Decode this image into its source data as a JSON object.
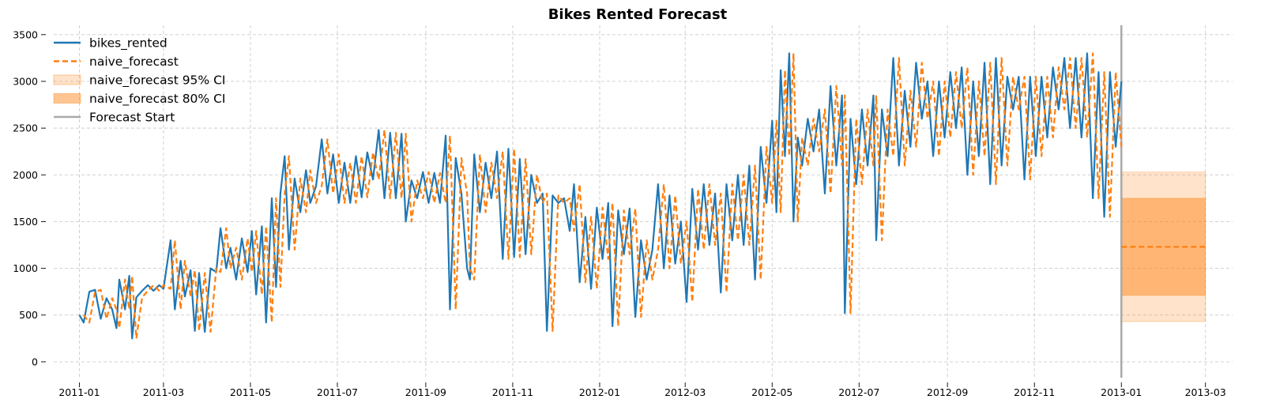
{
  "chart_data": {
    "type": "line",
    "title": "Bikes Rented Forecast",
    "xlabel": "",
    "ylabel": "",
    "x_range": [
      "2010-12-14",
      "2013-03-20"
    ],
    "ylim": [
      -170,
      3600
    ],
    "grid": true,
    "legend_position": "top-left",
    "x_ticks": [
      "2011-01",
      "2011-03",
      "2011-05",
      "2011-07",
      "2011-09",
      "2011-11",
      "2012-01",
      "2012-03",
      "2012-05",
      "2012-07",
      "2012-09",
      "2012-11",
      "2013-01",
      "2013-03"
    ],
    "y_ticks": [
      0,
      500,
      1000,
      1500,
      2000,
      2500,
      3000,
      3500
    ],
    "series": [
      {
        "name": "bikes_rented",
        "color": "#1f77b4",
        "style": "solid",
        "points": [
          [
            "2011-01-01",
            500
          ],
          [
            "2011-01-04",
            420
          ],
          [
            "2011-01-08",
            750
          ],
          [
            "2011-01-12",
            770
          ],
          [
            "2011-01-16",
            460
          ],
          [
            "2011-01-20",
            680
          ],
          [
            "2011-01-24",
            560
          ],
          [
            "2011-01-27",
            360
          ],
          [
            "2011-01-29",
            880
          ],
          [
            "2011-02-02",
            560
          ],
          [
            "2011-02-05",
            920
          ],
          [
            "2011-02-07",
            250
          ],
          [
            "2011-02-10",
            690
          ],
          [
            "2011-02-14",
            760
          ],
          [
            "2011-02-18",
            820
          ],
          [
            "2011-02-22",
            760
          ],
          [
            "2011-02-26",
            820
          ],
          [
            "2011-03-01",
            780
          ],
          [
            "2011-03-06",
            1300
          ],
          [
            "2011-03-09",
            560
          ],
          [
            "2011-03-13",
            1080
          ],
          [
            "2011-03-16",
            700
          ],
          [
            "2011-03-20",
            980
          ],
          [
            "2011-03-23",
            330
          ],
          [
            "2011-03-26",
            950
          ],
          [
            "2011-03-30",
            320
          ],
          [
            "2011-04-03",
            1000
          ],
          [
            "2011-04-07",
            960
          ],
          [
            "2011-04-10",
            1430
          ],
          [
            "2011-04-14",
            1000
          ],
          [
            "2011-04-17",
            1220
          ],
          [
            "2011-04-21",
            880
          ],
          [
            "2011-04-25",
            1320
          ],
          [
            "2011-04-29",
            960
          ],
          [
            "2011-05-02",
            1400
          ],
          [
            "2011-05-05",
            720
          ],
          [
            "2011-05-09",
            1450
          ],
          [
            "2011-05-12",
            420
          ],
          [
            "2011-05-16",
            1750
          ],
          [
            "2011-05-19",
            800
          ],
          [
            "2011-05-22",
            1800
          ],
          [
            "2011-05-25",
            2200
          ],
          [
            "2011-05-28",
            1200
          ],
          [
            "2011-06-01",
            1960
          ],
          [
            "2011-06-05",
            1600
          ],
          [
            "2011-06-09",
            2050
          ],
          [
            "2011-06-12",
            1700
          ],
          [
            "2011-06-16",
            1880
          ],
          [
            "2011-06-20",
            2380
          ],
          [
            "2011-06-24",
            1800
          ],
          [
            "2011-06-28",
            2220
          ],
          [
            "2011-07-02",
            1700
          ],
          [
            "2011-07-06",
            2130
          ],
          [
            "2011-07-10",
            1700
          ],
          [
            "2011-07-14",
            2200
          ],
          [
            "2011-07-18",
            1760
          ],
          [
            "2011-07-22",
            2240
          ],
          [
            "2011-07-26",
            1950
          ],
          [
            "2011-07-30",
            2480
          ],
          [
            "2011-08-03",
            1750
          ],
          [
            "2011-08-07",
            2450
          ],
          [
            "2011-08-11",
            1750
          ],
          [
            "2011-08-15",
            2440
          ],
          [
            "2011-08-18",
            1500
          ],
          [
            "2011-08-22",
            1940
          ],
          [
            "2011-08-26",
            1750
          ],
          [
            "2011-08-30",
            2030
          ],
          [
            "2011-09-03",
            1700
          ],
          [
            "2011-09-07",
            2020
          ],
          [
            "2011-09-11",
            1700
          ],
          [
            "2011-09-15",
            2420
          ],
          [
            "2011-09-18",
            560
          ],
          [
            "2011-09-22",
            2180
          ],
          [
            "2011-09-26",
            1800
          ],
          [
            "2011-09-30",
            1000
          ],
          [
            "2011-10-02",
            880
          ],
          [
            "2011-10-05",
            2220
          ],
          [
            "2011-10-09",
            1600
          ],
          [
            "2011-10-13",
            2130
          ],
          [
            "2011-10-17",
            1750
          ],
          [
            "2011-10-21",
            2250
          ],
          [
            "2011-10-25",
            1100
          ],
          [
            "2011-10-29",
            2280
          ],
          [
            "2011-11-02",
            1120
          ],
          [
            "2011-11-06",
            2170
          ],
          [
            "2011-11-10",
            1150
          ],
          [
            "2011-11-14",
            2000
          ],
          [
            "2011-11-18",
            1700
          ],
          [
            "2011-11-22",
            1800
          ],
          [
            "2011-11-25",
            330
          ],
          [
            "2011-11-29",
            1780
          ],
          [
            "2011-12-03",
            1700
          ],
          [
            "2011-12-07",
            1750
          ],
          [
            "2011-12-11",
            1400
          ],
          [
            "2011-12-14",
            1900
          ],
          [
            "2011-12-18",
            850
          ],
          [
            "2011-12-22",
            1550
          ],
          [
            "2011-12-26",
            780
          ],
          [
            "2011-12-30",
            1650
          ],
          [
            "2012-01-03",
            1100
          ],
          [
            "2012-01-07",
            1700
          ],
          [
            "2012-01-10",
            380
          ],
          [
            "2012-01-14",
            1620
          ],
          [
            "2012-01-18",
            1150
          ],
          [
            "2012-01-22",
            1640
          ],
          [
            "2012-01-26",
            480
          ],
          [
            "2012-01-30",
            1300
          ],
          [
            "2012-02-03",
            880
          ],
          [
            "2012-02-07",
            1200
          ],
          [
            "2012-02-11",
            1900
          ],
          [
            "2012-02-15",
            1000
          ],
          [
            "2012-02-19",
            1780
          ],
          [
            "2012-02-23",
            1050
          ],
          [
            "2012-02-27",
            1500
          ],
          [
            "2012-03-02",
            640
          ],
          [
            "2012-03-06",
            1850
          ],
          [
            "2012-03-10",
            1200
          ],
          [
            "2012-03-14",
            1900
          ],
          [
            "2012-03-18",
            1250
          ],
          [
            "2012-03-22",
            1800
          ],
          [
            "2012-03-26",
            740
          ],
          [
            "2012-03-30",
            1900
          ],
          [
            "2012-04-03",
            1300
          ],
          [
            "2012-04-07",
            2000
          ],
          [
            "2012-04-11",
            1250
          ],
          [
            "2012-04-15",
            2100
          ],
          [
            "2012-04-19",
            880
          ],
          [
            "2012-04-23",
            2300
          ],
          [
            "2012-04-27",
            1700
          ],
          [
            "2012-05-01",
            2580
          ],
          [
            "2012-05-04",
            1600
          ],
          [
            "2012-05-07",
            3120
          ],
          [
            "2012-05-10",
            2200
          ],
          [
            "2012-05-13",
            3300
          ],
          [
            "2012-05-16",
            1500
          ],
          [
            "2012-05-19",
            2400
          ],
          [
            "2012-05-22",
            2100
          ],
          [
            "2012-05-26",
            2600
          ],
          [
            "2012-05-30",
            2250
          ],
          [
            "2012-06-03",
            2700
          ],
          [
            "2012-06-07",
            1800
          ],
          [
            "2012-06-11",
            2950
          ],
          [
            "2012-06-15",
            2100
          ],
          [
            "2012-06-19",
            2850
          ],
          [
            "2012-06-21",
            520
          ],
          [
            "2012-06-25",
            2600
          ],
          [
            "2012-06-29",
            1900
          ],
          [
            "2012-07-03",
            2700
          ],
          [
            "2012-07-07",
            2100
          ],
          [
            "2012-07-11",
            2850
          ],
          [
            "2012-07-13",
            1300
          ],
          [
            "2012-07-17",
            2700
          ],
          [
            "2012-07-21",
            2200
          ],
          [
            "2012-07-25",
            3250
          ],
          [
            "2012-07-29",
            2100
          ],
          [
            "2012-08-02",
            2900
          ],
          [
            "2012-08-06",
            2300
          ],
          [
            "2012-08-10",
            3200
          ],
          [
            "2012-08-14",
            2600
          ],
          [
            "2012-08-18",
            3000
          ],
          [
            "2012-08-22",
            2200
          ],
          [
            "2012-08-26",
            3000
          ],
          [
            "2012-08-30",
            2400
          ],
          [
            "2012-09-03",
            3100
          ],
          [
            "2012-09-07",
            2500
          ],
          [
            "2012-09-11",
            3150
          ],
          [
            "2012-09-15",
            2000
          ],
          [
            "2012-09-19",
            3000
          ],
          [
            "2012-09-23",
            2200
          ],
          [
            "2012-09-27",
            3200
          ],
          [
            "2012-10-01",
            1900
          ],
          [
            "2012-10-05",
            3250
          ],
          [
            "2012-10-09",
            2100
          ],
          [
            "2012-10-13",
            3050
          ],
          [
            "2012-10-17",
            2700
          ],
          [
            "2012-10-21",
            3050
          ],
          [
            "2012-10-25",
            1950
          ],
          [
            "2012-10-29",
            3050
          ],
          [
            "2012-11-02",
            2200
          ],
          [
            "2012-11-06",
            3050
          ],
          [
            "2012-11-10",
            2400
          ],
          [
            "2012-11-14",
            3150
          ],
          [
            "2012-11-18",
            2700
          ],
          [
            "2012-11-22",
            3250
          ],
          [
            "2012-11-26",
            2500
          ],
          [
            "2012-11-30",
            3250
          ],
          [
            "2012-12-04",
            2400
          ],
          [
            "2012-12-08",
            3300
          ],
          [
            "2012-12-12",
            1750
          ],
          [
            "2012-12-16",
            3100
          ],
          [
            "2012-12-20",
            1550
          ],
          [
            "2012-12-24",
            3100
          ],
          [
            "2012-12-28",
            2300
          ],
          [
            "2013-01-01",
            3000
          ]
        ]
      },
      {
        "name": "naive_forecast",
        "color": "#ff7f0e",
        "style": "dashed",
        "points": [
          [
            "2013-01-01",
            1230
          ],
          [
            "2013-03-01",
            1230
          ]
        ]
      }
    ],
    "intervals": [
      {
        "name": "naive_forecast 95% CI",
        "color": "#ff7f0e",
        "opacity": 0.22,
        "lower": 430,
        "upper": 2030,
        "x": [
          "2013-01-01",
          "2013-03-01"
        ]
      },
      {
        "name": "naive_forecast 80% CI",
        "color": "#ff7f0e",
        "opacity": 0.45,
        "lower": 710,
        "upper": 1750,
        "x": [
          "2013-01-01",
          "2013-03-01"
        ]
      }
    ],
    "vlines": [
      {
        "name": "Forecast Start",
        "color": "#a9a9a9",
        "x": "2013-01-01"
      }
    ],
    "legend": [
      "bikes_rented",
      "naive_forecast",
      "naive_forecast 95% CI",
      "naive_forecast 80% CI",
      "Forecast Start"
    ]
  }
}
